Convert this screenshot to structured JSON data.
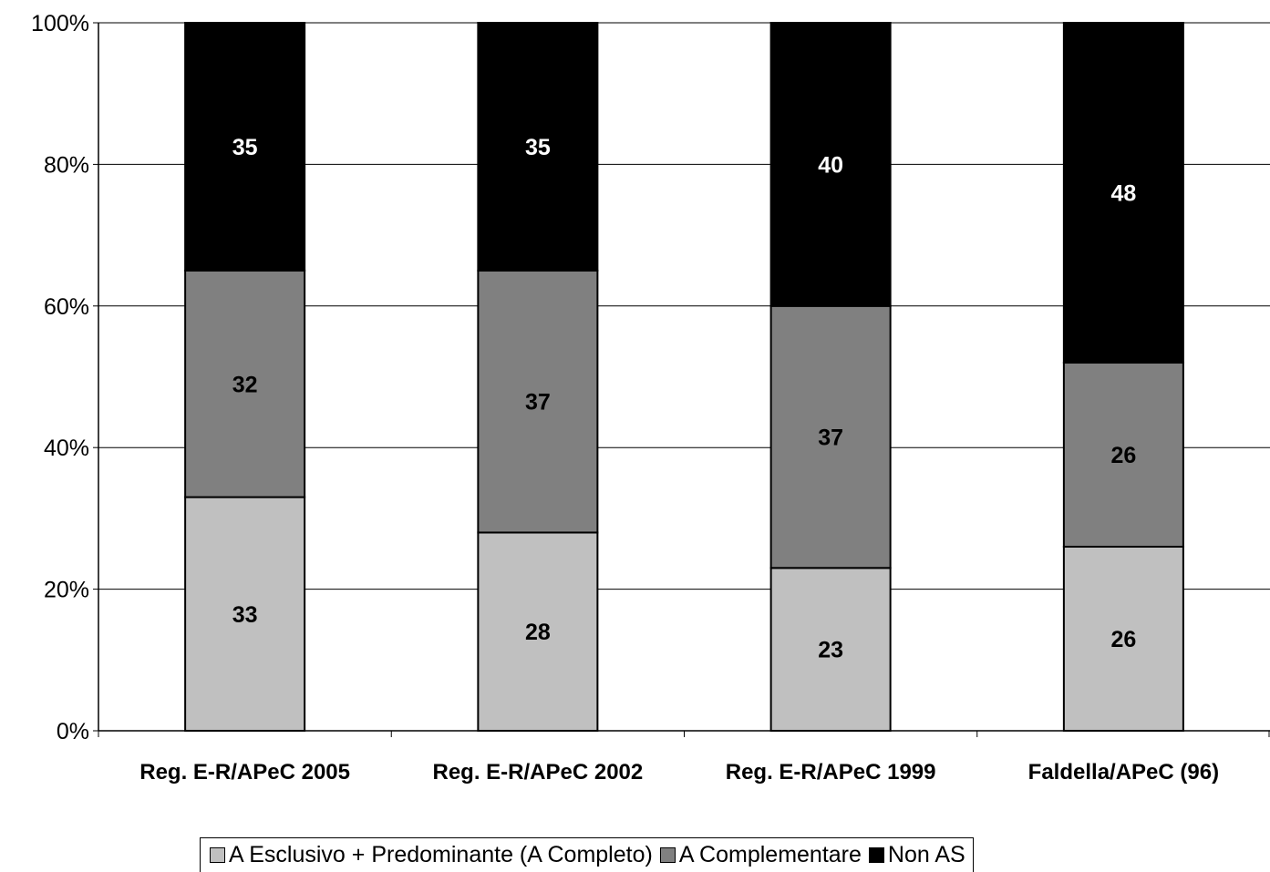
{
  "chart_data": {
    "type": "bar",
    "stacked": true,
    "categories": [
      "Reg. E-R/APeC 2005",
      "Reg. E-R/APeC 2002",
      "Reg. E-R/APeC 1999",
      "Faldella/APeC (96)"
    ],
    "series": [
      {
        "name": "A Esclusivo + Predominante (A Completo)",
        "values": [
          33,
          28,
          23,
          26
        ],
        "color": "#c0c0c0",
        "label_color": "#000000"
      },
      {
        "name": "A Complementare",
        "values": [
          32,
          37,
          37,
          26
        ],
        "color": "#808080",
        "label_color": "#000000"
      },
      {
        "name": "Non AS",
        "values": [
          35,
          35,
          40,
          48
        ],
        "color": "#000000",
        "label_color": "#ffffff"
      }
    ],
    "ylim": [
      0,
      100
    ],
    "yticks": [
      "0%",
      "20%",
      "40%",
      "60%",
      "80%",
      "100%"
    ],
    "grid": true,
    "legend_position": "bottom"
  }
}
